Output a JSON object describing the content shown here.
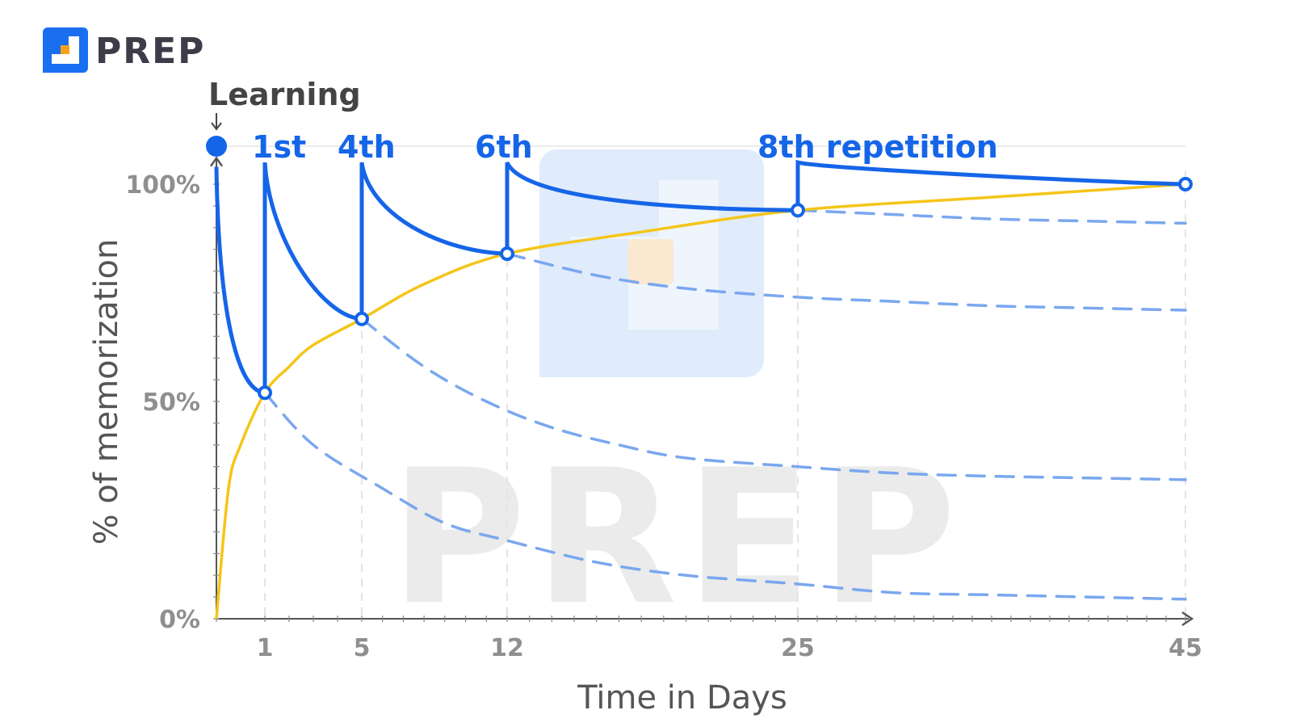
{
  "brand": {
    "name": "PREP",
    "logo_icon": "prep-logo-icon",
    "color": "#1a6ff0",
    "accent": "#f5a21b"
  },
  "watermark": {
    "text": "PREP"
  },
  "chart_data": {
    "type": "line",
    "xlabel": "Time in Days",
    "ylabel": "% of memorization",
    "x_ticks": [
      1,
      5,
      12,
      25,
      45
    ],
    "y_ticks": [
      {
        "value": 0,
        "label": "0%"
      },
      {
        "value": 50,
        "label": "50%"
      },
      {
        "value": 100,
        "label": "100%"
      }
    ],
    "xlim": [
      0,
      45
    ],
    "ylim": [
      0,
      100
    ],
    "learning_label": "Learning",
    "review_points": [
      {
        "day": 0,
        "value": 104,
        "label": ""
      },
      {
        "day": 1,
        "value": 52,
        "label": "1st"
      },
      {
        "day": 5,
        "value": 69,
        "label": "4th"
      },
      {
        "day": 12,
        "value": 84,
        "label": "6th"
      },
      {
        "day": 25,
        "value": 94,
        "label": "8th repetition"
      },
      {
        "day": 45,
        "value": 100,
        "label": ""
      }
    ],
    "series": [
      {
        "style": "sawtooth",
        "color": "#1565e8",
        "segments": [
          {
            "start": [
              0,
              104
            ],
            "end": [
              1,
              52
            ],
            "bend": 0.65
          },
          {
            "start": [
              1,
              105
            ],
            "end": [
              5,
              69
            ],
            "bend": 0.4
          },
          {
            "start": [
              5,
              105
            ],
            "end": [
              12,
              84
            ],
            "bend": 0.5
          },
          {
            "start": [
              12,
              105
            ],
            "end": [
              25,
              94
            ],
            "bend": 0.65
          },
          {
            "start": [
              25,
              105
            ],
            "end": [
              45,
              100
            ],
            "bend": 0.1
          }
        ]
      },
      {
        "style": "solid",
        "color": "#f5c518",
        "points": [
          [
            0,
            0
          ],
          [
            0.25,
            30
          ],
          [
            0.5,
            40
          ],
          [
            1,
            52
          ],
          [
            2,
            58
          ],
          [
            3,
            63
          ],
          [
            5,
            69
          ],
          [
            8,
            77
          ],
          [
            12,
            84
          ],
          [
            18,
            89
          ],
          [
            25,
            94
          ],
          [
            35,
            97
          ],
          [
            45,
            100
          ]
        ]
      },
      {
        "style": "dashed",
        "color": "#7aa7ef",
        "points": [
          [
            1,
            52
          ],
          [
            3,
            40
          ],
          [
            6,
            30
          ],
          [
            9,
            22
          ],
          [
            12,
            18
          ],
          [
            16,
            13
          ],
          [
            20,
            10
          ],
          [
            25,
            8
          ],
          [
            30,
            6
          ],
          [
            35,
            5.5
          ],
          [
            40,
            5
          ],
          [
            45,
            4.5
          ]
        ]
      },
      {
        "style": "dashed",
        "color": "#7aa7ef",
        "points": [
          [
            5,
            69
          ],
          [
            8,
            58
          ],
          [
            11,
            50
          ],
          [
            14,
            44
          ],
          [
            17,
            40
          ],
          [
            20,
            37
          ],
          [
            25,
            35
          ],
          [
            30,
            33.5
          ],
          [
            35,
            32.8
          ],
          [
            40,
            32.4
          ],
          [
            45,
            32
          ]
        ]
      },
      {
        "style": "dashed",
        "color": "#7aa7ef",
        "points": [
          [
            12,
            84
          ],
          [
            16,
            79
          ],
          [
            20,
            76
          ],
          [
            25,
            74
          ],
          [
            30,
            73
          ],
          [
            35,
            72
          ],
          [
            40,
            71.5
          ],
          [
            45,
            71
          ]
        ]
      },
      {
        "style": "dashed",
        "color": "#7aa7ef",
        "points": [
          [
            25,
            94
          ],
          [
            30,
            93
          ],
          [
            35,
            92
          ],
          [
            40,
            91.5
          ],
          [
            45,
            91
          ]
        ]
      }
    ]
  }
}
